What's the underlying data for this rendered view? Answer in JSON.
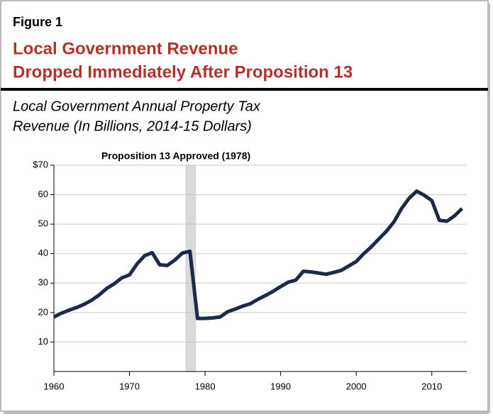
{
  "chart_data": {
    "type": "line",
    "figure_label": "Figure 1",
    "title": [
      "Local Government Revenue",
      "Dropped Immediately After Proposition 13"
    ],
    "subtitle": [
      "Local Government Annual Property Tax",
      "Revenue (In Billions, 2014-15 Dollars)"
    ],
    "annotation": "Proposition 13 Approved (1978)",
    "shaded_range": [
      1977.4,
      1978.8
    ],
    "x": [
      1960,
      1961,
      1962,
      1963,
      1964,
      1965,
      1966,
      1967,
      1968,
      1969,
      1970,
      1971,
      1972,
      1973,
      1974,
      1975,
      1976,
      1977,
      1978,
      1979,
      1980,
      1981,
      1982,
      1983,
      1984,
      1985,
      1986,
      1987,
      1988,
      1989,
      1990,
      1991,
      1992,
      1993,
      1994,
      1995,
      1996,
      1997,
      1998,
      1999,
      2000,
      2001,
      2002,
      2003,
      2004,
      2005,
      2006,
      2007,
      2008,
      2009,
      2010,
      2011,
      2012,
      2013,
      2014
    ],
    "series": [
      {
        "color": "#1b2a48",
        "values": [
          18.5,
          19.8,
          20.8,
          21.7,
          22.8,
          24.2,
          26,
          28.2,
          29.8,
          31.8,
          32.8,
          36.5,
          39.3,
          40.3,
          36.2,
          36,
          37.8,
          40.2,
          40.8,
          18,
          18,
          18.2,
          18.5,
          20.3,
          21.2,
          22.2,
          23,
          24.5,
          25.8,
          27.2,
          28.8,
          30.3,
          31,
          34,
          33.8,
          33.4,
          33,
          33.6,
          34.3,
          35.8,
          37.3,
          40,
          42.3,
          45,
          47.6,
          50.8,
          55.3,
          58.8,
          61.2,
          59.8,
          58,
          51.3,
          51,
          52.8,
          55.3
        ]
      }
    ],
    "xlim": [
      1960,
      2015
    ],
    "xticks": [
      1960,
      1970,
      1980,
      1990,
      2000,
      2010
    ],
    "ylim": [
      0,
      70
    ],
    "yticks": [
      10,
      20,
      30,
      40,
      50,
      60,
      {
        "value": 70,
        "label": "$70"
      }
    ],
    "grid": true
  }
}
